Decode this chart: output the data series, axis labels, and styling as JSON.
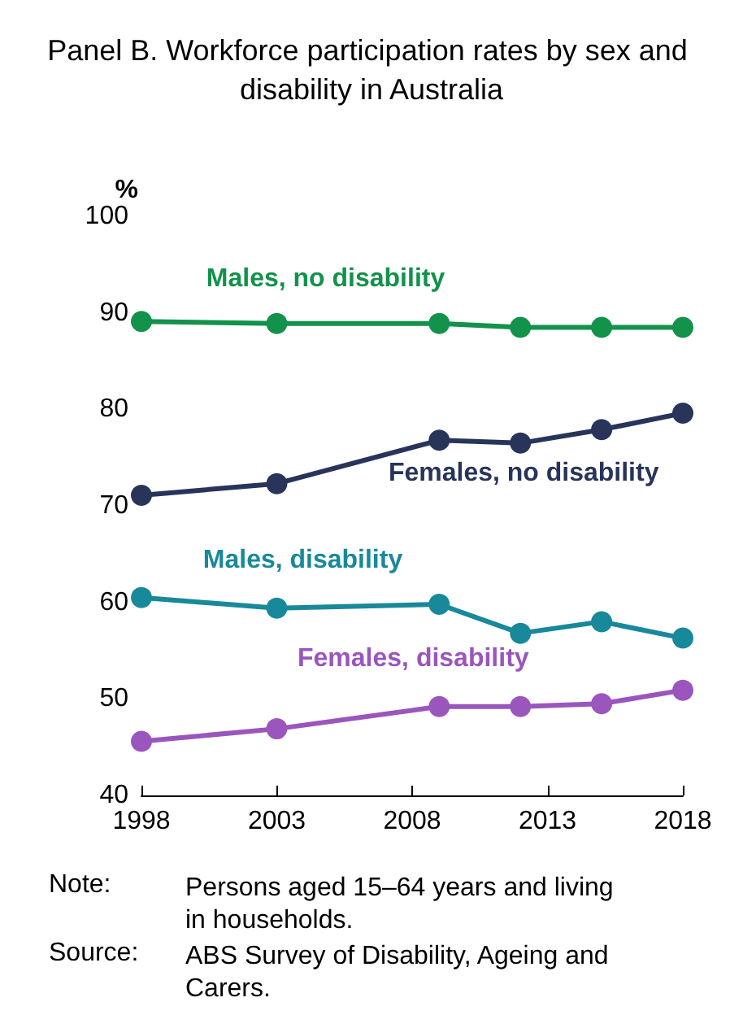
{
  "chart_data": {
    "type": "line",
    "title": "Panel B. Workforce participation rates by sex and disability in Australia",
    "ylabel": "%",
    "x": [
      1998,
      2003,
      2009,
      2012,
      2015,
      2018
    ],
    "xlim": [
      1998,
      2018
    ],
    "xticks": [
      1998,
      2003,
      2008,
      2013,
      2018
    ],
    "ylim": [
      40,
      100
    ],
    "yticks": [
      40,
      50,
      60,
      70,
      80,
      90,
      100
    ],
    "grid": false,
    "legend": false,
    "marker": "circle",
    "line_style": "solid",
    "series": [
      {
        "name": "Males, no disability",
        "color": "#12924a",
        "values": [
          89.1,
          88.9,
          88.9,
          88.5,
          88.5,
          88.5
        ]
      },
      {
        "name": "Females, no disability",
        "color": "#283459",
        "values": [
          71.1,
          72.3,
          76.8,
          76.5,
          77.9,
          79.6
        ]
      },
      {
        "name": "Males, disability",
        "color": "#18899a",
        "values": [
          60.5,
          59.4,
          59.8,
          56.8,
          58.0,
          56.3
        ]
      },
      {
        "name": "Females, disability",
        "color": "#9a56bd",
        "values": [
          45.6,
          46.9,
          49.2,
          49.2,
          49.5,
          50.9
        ]
      }
    ],
    "annotations": [
      "Note: Persons aged 15–64 years and living in households.",
      "Source: ABS Survey of Disability, Ageing and Carers."
    ]
  }
}
